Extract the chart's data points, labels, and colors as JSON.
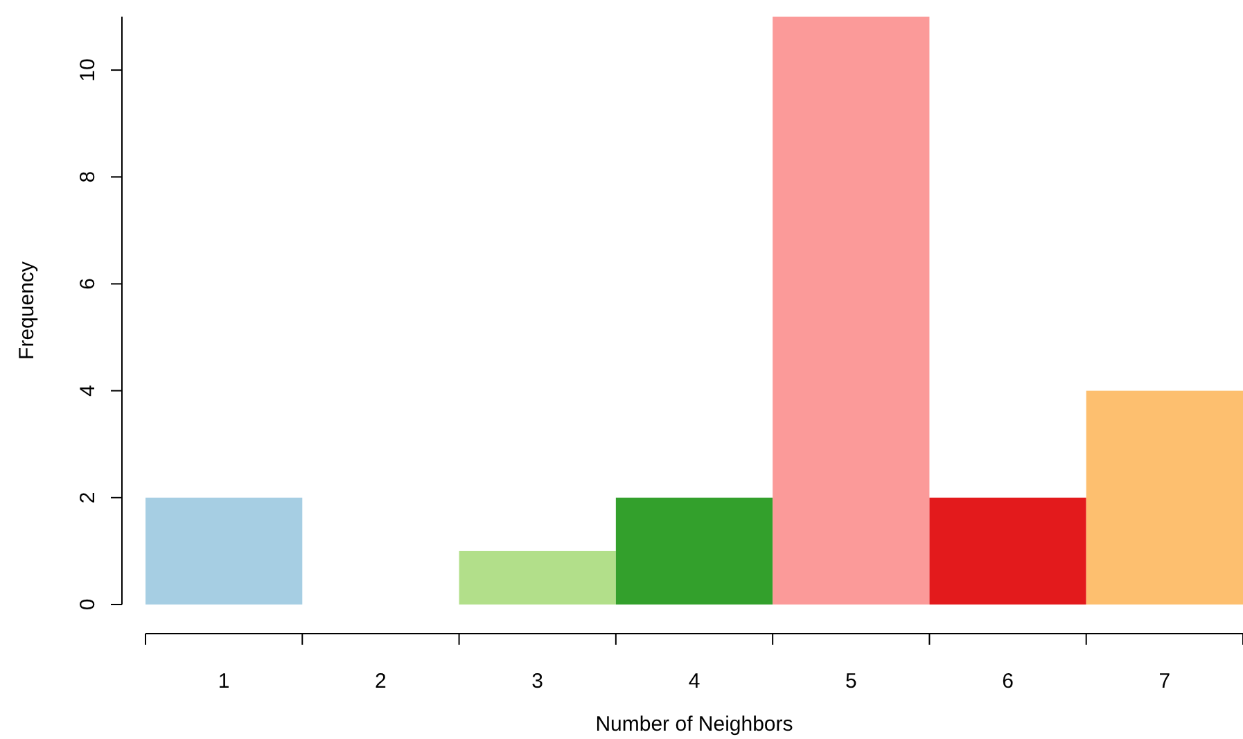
{
  "chart_data": {
    "type": "bar",
    "xlabel": "Number of Neighbors",
    "ylabel": "Frequency",
    "categories": [
      "1",
      "2",
      "3",
      "4",
      "5",
      "6",
      "7"
    ],
    "values": [
      2,
      0,
      1,
      2,
      11,
      2,
      4
    ],
    "colors": [
      "#a6cee3",
      "#1f78b4",
      "#b2df8a",
      "#33a02c",
      "#fb9a99",
      "#e31a1c",
      "#fdbf6f"
    ],
    "ylim": [
      0,
      11
    ],
    "yticks": [
      0,
      2,
      4,
      6,
      8,
      10
    ]
  }
}
